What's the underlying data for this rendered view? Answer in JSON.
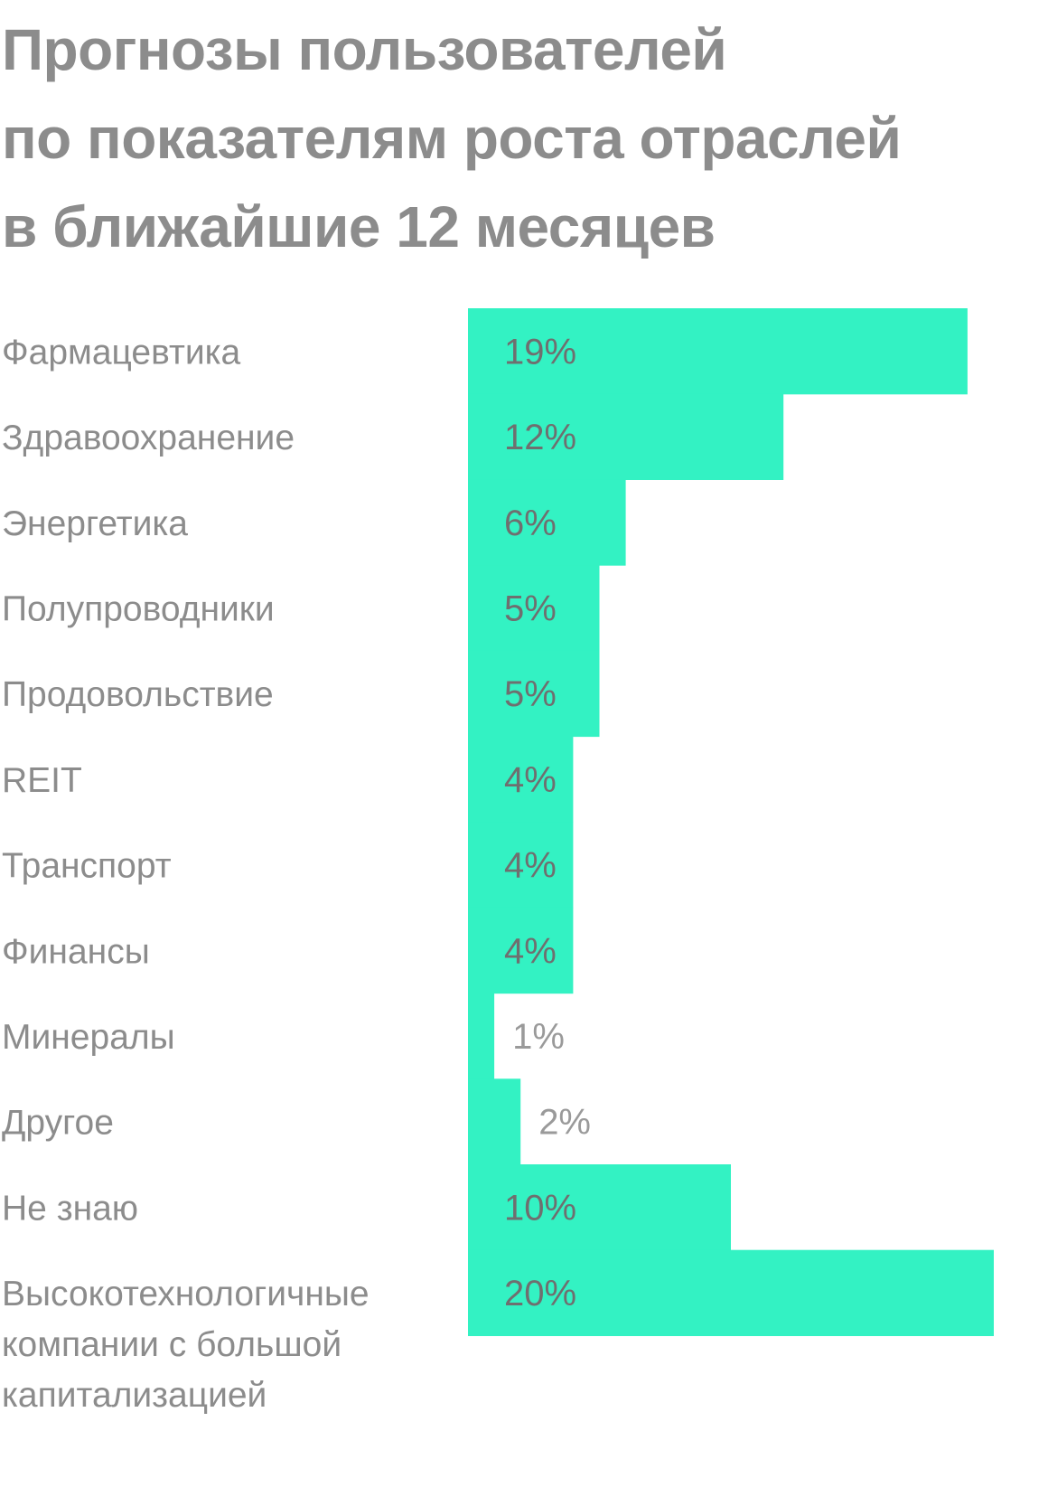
{
  "chart_data": {
    "type": "bar",
    "orientation": "horizontal",
    "title": "Прогнозы пользователей по показателям роста отраслей в ближайшие 12 месяцев",
    "title_lines": [
      "Прогнозы пользователей",
      "по показателям роста отраслей",
      "в ближайшие 12 месяцев"
    ],
    "categories": [
      [
        "Фармацевтика"
      ],
      [
        "Здравоохранение"
      ],
      [
        "Энергетика"
      ],
      [
        "Полупроводники"
      ],
      [
        "Продовольствие"
      ],
      [
        "REIT"
      ],
      [
        "Транспорт"
      ],
      [
        "Финансы"
      ],
      [
        "Минералы"
      ],
      [
        "Другое"
      ],
      [
        "Не знаю"
      ],
      [
        "Высокотехнологичные",
        "компании с большой",
        "капитализацией"
      ]
    ],
    "values": [
      19,
      12,
      6,
      5,
      5,
      4,
      4,
      4,
      1,
      2,
      10,
      20
    ],
    "value_labels": [
      "19%",
      "12%",
      "6%",
      "5%",
      "5%",
      "4%",
      "4%",
      "4%",
      "1%",
      "2%",
      "10%",
      "20%"
    ],
    "unit": "%",
    "xlim": [
      0,
      20
    ],
    "grid": false,
    "legend": "none",
    "colors": {
      "bar": "#33f2c3",
      "title": "#8c8c8c",
      "category_label": "#8c8c8c",
      "value_label_inside": "#6f6f6f",
      "value_label_outside": "#9a9a9a"
    }
  }
}
